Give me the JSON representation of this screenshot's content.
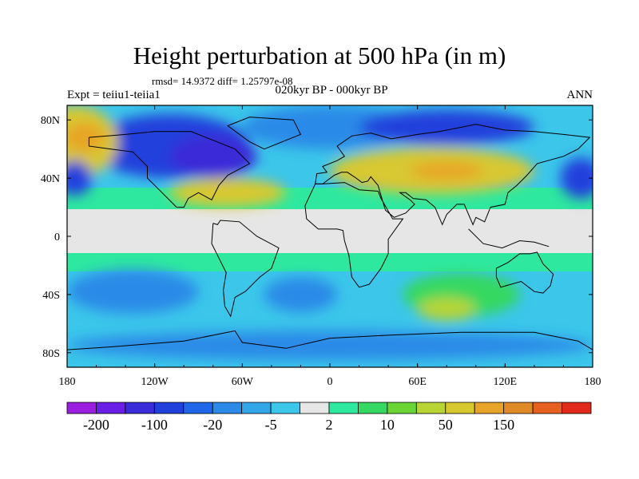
{
  "title": "Height perturbation at 500 hPa (in m)",
  "stats": "rmsd= 14.9372 diff= 1.25797e-08",
  "experiment": "Expt = teiiu1-teiia1",
  "period": "020kyr BP - 000kyr BP",
  "season": "ANN",
  "x_axis": {
    "ticks": [
      {
        "lon": -180,
        "label": "180"
      },
      {
        "lon": -120,
        "label": "120W"
      },
      {
        "lon": -60,
        "label": "60W"
      },
      {
        "lon": 0,
        "label": "0"
      },
      {
        "lon": 60,
        "label": "60E"
      },
      {
        "lon": 120,
        "label": "120E"
      },
      {
        "lon": 180,
        "label": "180"
      }
    ],
    "range": [
      -180,
      180
    ]
  },
  "y_axis": {
    "ticks": [
      {
        "lat": 80,
        "label": "80N"
      },
      {
        "lat": 40,
        "label": "40N"
      },
      {
        "lat": 0,
        "label": "0"
      },
      {
        "lat": -40,
        "label": "40S"
      },
      {
        "lat": -80,
        "label": "80S"
      }
    ],
    "range": [
      -90,
      90
    ]
  },
  "colorbar": {
    "colors": [
      "#9a1de0",
      "#6a1ee6",
      "#3a2bd8",
      "#2040dc",
      "#1f66e8",
      "#2b8ae8",
      "#33a6ea",
      "#3bc6ea",
      "#e6e6e6",
      "#2ee8a0",
      "#35d860",
      "#6ad435",
      "#b8d435",
      "#d8c830",
      "#e8a428",
      "#e08a28",
      "#e86020",
      "#e22a1c"
    ],
    "labels": [
      {
        "boundary": 1,
        "label": "-200"
      },
      {
        "boundary": 3,
        "label": "-100"
      },
      {
        "boundary": 5,
        "label": "-20"
      },
      {
        "boundary": 7,
        "label": "-5"
      },
      {
        "boundary": 9,
        "label": "2"
      },
      {
        "boundary": 11,
        "label": "10"
      },
      {
        "boundary": 13,
        "label": "50"
      },
      {
        "boundary": 15,
        "label": "150"
      }
    ]
  },
  "field_blobs": [
    {
      "lon": -110,
      "lat": 62,
      "rlon": 55,
      "rlat": 22,
      "level": "#2040dc"
    },
    {
      "lon": -80,
      "lat": 55,
      "rlon": 30,
      "rlat": 15,
      "level": "#3a2bd8"
    },
    {
      "lon": 0,
      "lat": 75,
      "rlon": 60,
      "rlat": 15,
      "level": "#2b8ae8"
    },
    {
      "lon": 80,
      "lat": 75,
      "rlon": 60,
      "rlat": 12,
      "level": "#2040dc"
    },
    {
      "lon": -175,
      "lat": 65,
      "rlon": 30,
      "rlat": 25,
      "level": "#d8c830"
    },
    {
      "lon": -168,
      "lat": 68,
      "rlon": 14,
      "rlat": 10,
      "level": "#e8a428"
    },
    {
      "lon": 70,
      "lat": 45,
      "rlon": 70,
      "rlat": 16,
      "level": "#d8c830"
    },
    {
      "lon": 80,
      "lat": 45,
      "rlon": 25,
      "rlat": 6,
      "level": "#e8a428"
    },
    {
      "lon": -70,
      "lat": 30,
      "rlon": 40,
      "rlat": 10,
      "level": "#d8c830"
    },
    {
      "lon": 172,
      "lat": 40,
      "rlon": 14,
      "rlat": 14,
      "level": "#2040dc"
    },
    {
      "lon": -175,
      "lat": 40,
      "rlon": 12,
      "rlat": 12,
      "level": "#2040dc"
    },
    {
      "lon": -135,
      "lat": -38,
      "rlon": 45,
      "rlat": 15,
      "level": "#2b8ae8"
    },
    {
      "lon": -20,
      "lat": -40,
      "rlon": 25,
      "rlat": 12,
      "level": "#2b8ae8"
    },
    {
      "lon": 90,
      "lat": -40,
      "rlon": 40,
      "rlat": 15,
      "level": "#35d860"
    },
    {
      "lon": 80,
      "lat": -50,
      "rlon": 20,
      "rlat": 8,
      "level": "#b8d435"
    },
    {
      "lon": 0,
      "lat": -75,
      "rlon": 180,
      "rlat": 10,
      "level": "#2b8ae8"
    }
  ],
  "icons": {
    "map_coastlines": "coastline-outline"
  }
}
